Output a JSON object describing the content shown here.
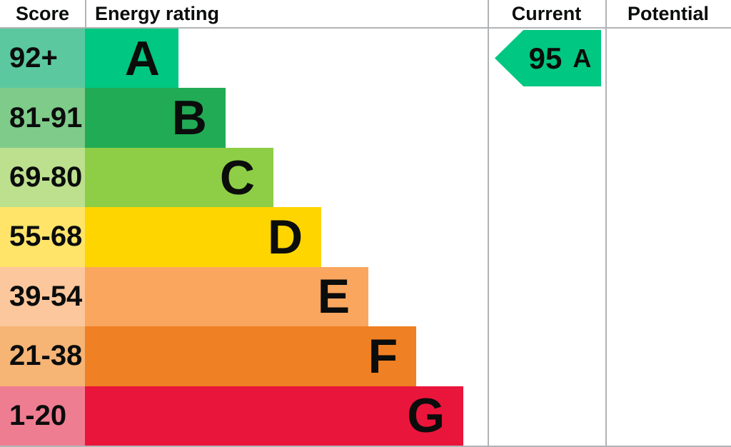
{
  "header": {
    "score": "Score",
    "energy_rating": "Energy rating",
    "current": "Current",
    "potential": "Potential"
  },
  "colors": {
    "border": "#b1b4b6",
    "text": "#0b0c0c",
    "background": "#ffffff"
  },
  "chart_data": {
    "type": "bar",
    "title": "Energy rating",
    "orientation": "horizontal",
    "columns": [
      "Score",
      "Energy rating",
      "Current",
      "Potential"
    ],
    "grid": false,
    "legend_position": "none",
    "bands": [
      {
        "letter": "A",
        "score_range": "92+",
        "bar_color": "#00c781",
        "score_bg": "#5bc8a0",
        "bar_width_pct": 23.2
      },
      {
        "letter": "B",
        "score_range": "81-91",
        "bar_color": "#21ab55",
        "score_bg": "#7fcb8a",
        "bar_width_pct": 34.9
      },
      {
        "letter": "C",
        "score_range": "69-80",
        "bar_color": "#8dce46",
        "score_bg": "#bce08e",
        "bar_width_pct": 46.8
      },
      {
        "letter": "D",
        "score_range": "55-68",
        "bar_color": "#ffd500",
        "score_bg": "#ffe469",
        "bar_width_pct": 58.7
      },
      {
        "letter": "E",
        "score_range": "39-54",
        "bar_color": "#faa65f",
        "score_bg": "#fcc79c",
        "bar_width_pct": 70.4
      },
      {
        "letter": "F",
        "score_range": "21-38",
        "bar_color": "#ef8023",
        "score_bg": "#f6b475",
        "bar_width_pct": 82.3
      },
      {
        "letter": "G",
        "score_range": "1-20",
        "bar_color": "#e9153b",
        "score_bg": "#ef7d92",
        "bar_width_pct": 94.0
      }
    ],
    "current": {
      "score": "95",
      "band": "A",
      "band_index": 0,
      "arrow_color": "#00c781"
    },
    "potential": null
  }
}
